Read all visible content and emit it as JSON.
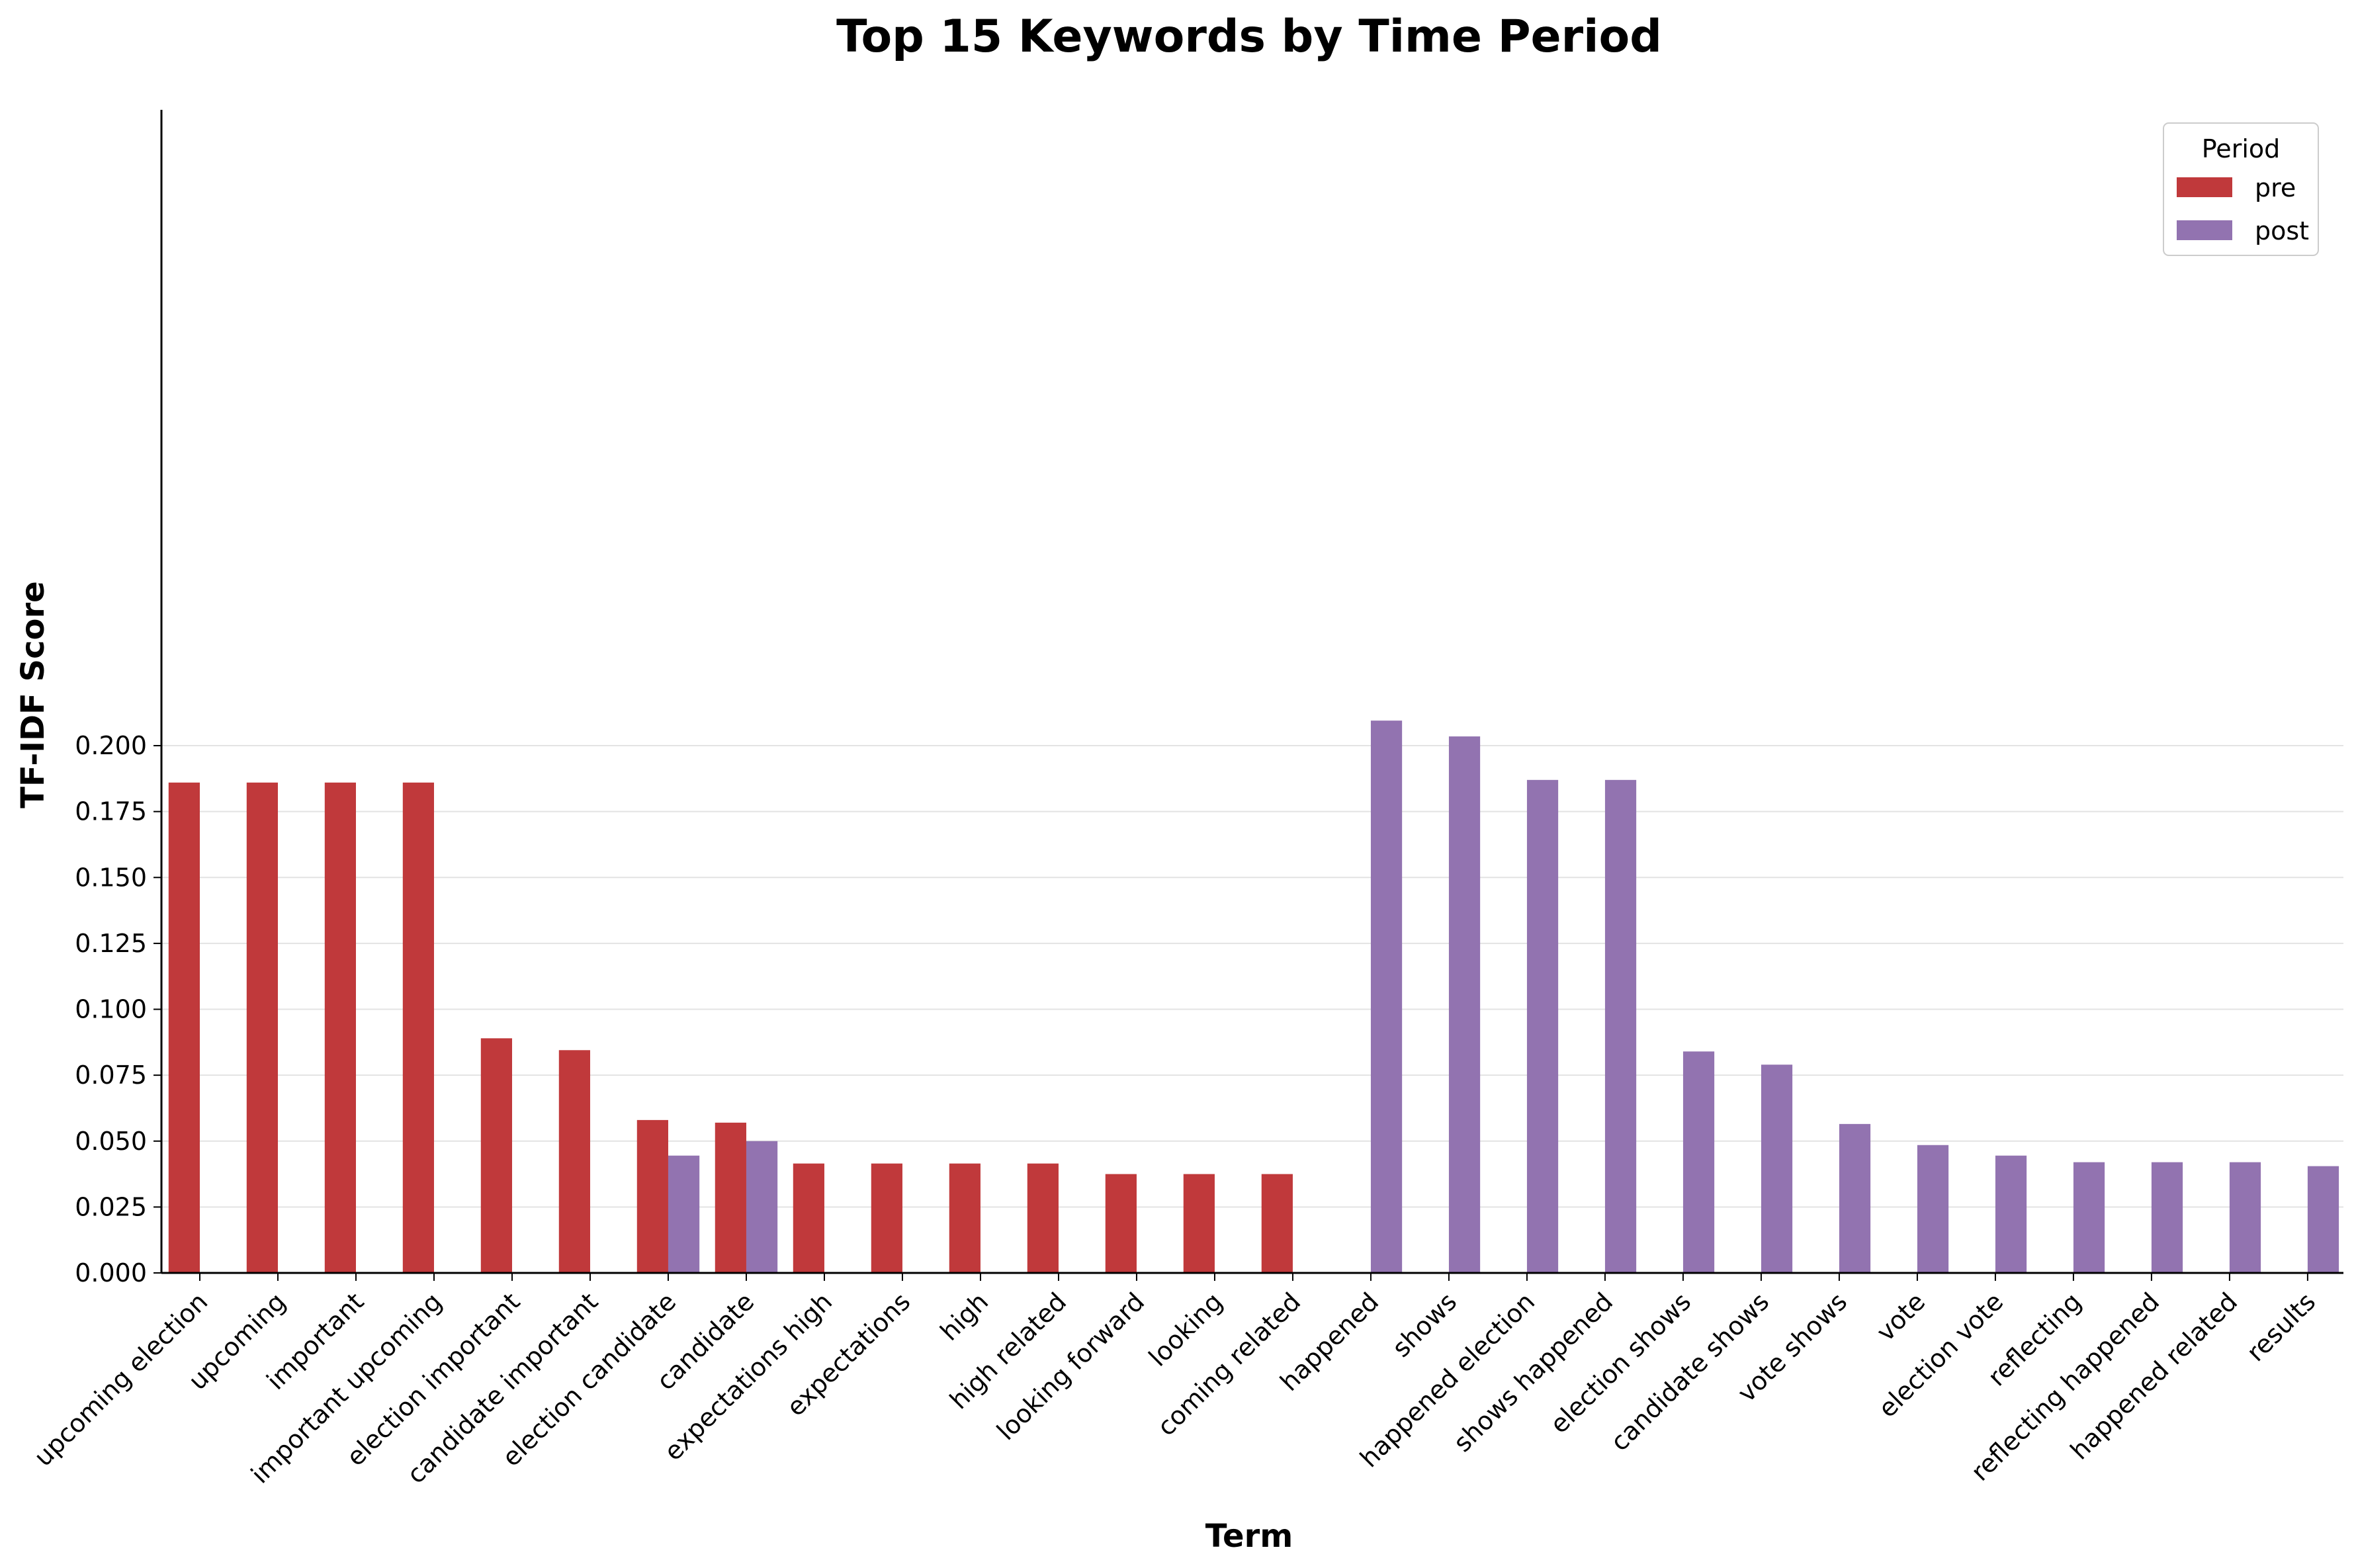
{
  "chart_data": {
    "type": "bar",
    "title": "Top 15 Keywords by Time Period",
    "xlabel": "Term",
    "ylabel": "TF-IDF Score",
    "ylim": [
      0,
      0.22
    ],
    "yticks": [
      "0.000",
      "0.025",
      "0.050",
      "0.075",
      "0.100",
      "0.125",
      "0.150",
      "0.175",
      "0.200"
    ],
    "grid": "y",
    "legend": {
      "title": "Period",
      "placement": "top-right"
    },
    "categories": [
      "upcoming election",
      "upcoming",
      "important",
      "important upcoming",
      "election important",
      "candidate important",
      "election candidate",
      "candidate",
      "expectations high",
      "expectations",
      "high",
      "high related",
      "looking forward",
      "looking",
      "coming related",
      "happened",
      "shows",
      "happened election",
      "shows happened",
      "election shows",
      "candidate shows",
      "vote shows",
      "vote",
      "election vote",
      "reflecting",
      "reflecting happened",
      "happened related",
      "results"
    ],
    "series": [
      {
        "name": "pre",
        "color": "#c0393b",
        "values": [
          0.186,
          0.186,
          0.186,
          0.186,
          0.089,
          0.0845,
          0.058,
          0.057,
          0.0415,
          0.0415,
          0.0415,
          0.0415,
          0.0375,
          0.0375,
          0.0375,
          null,
          null,
          null,
          null,
          null,
          null,
          null,
          null,
          null,
          null,
          null,
          null,
          null
        ]
      },
      {
        "name": "post",
        "color": "#9273b0",
        "values": [
          null,
          null,
          null,
          null,
          null,
          null,
          0.0445,
          0.05,
          null,
          null,
          null,
          null,
          null,
          null,
          null,
          0.2095,
          0.2035,
          0.187,
          0.187,
          0.084,
          0.079,
          0.0565,
          0.0485,
          0.0445,
          0.042,
          0.042,
          0.042,
          0.0405
        ]
      }
    ]
  }
}
